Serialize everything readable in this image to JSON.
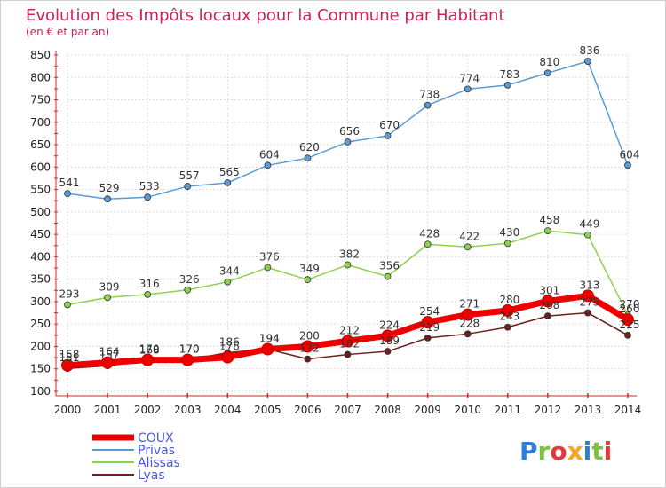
{
  "header": {
    "title": "Evolution des Impôts locaux pour la Commune par Habitant",
    "subtitle": "(en € et par an)"
  },
  "logo": {
    "text": "Proxiti",
    "colors": [
      "#2b7ed8",
      "#7ec142",
      "#e03a3a",
      "#f5a623",
      "#2b7ed8",
      "#7ec142",
      "#e03a3a"
    ]
  },
  "chart_data": {
    "type": "line",
    "x": [
      "2000",
      "2001",
      "2002",
      "2003",
      "2004",
      "2005",
      "2006",
      "2007",
      "2008",
      "2009",
      "2010",
      "2011",
      "2012",
      "2013",
      "2014"
    ],
    "ylim": [
      100,
      850
    ],
    "yticks": [
      100,
      150,
      200,
      250,
      300,
      350,
      400,
      450,
      500,
      550,
      600,
      650,
      700,
      750,
      800,
      850
    ],
    "grid": true,
    "legend_position": "bottom-left",
    "series": [
      {
        "name": "Privas",
        "color": "#5b9bd5",
        "values": [
          541,
          529,
          533,
          557,
          565,
          604,
          620,
          656,
          670,
          738,
          774,
          783,
          810,
          836,
          604
        ]
      },
      {
        "name": "Alissas",
        "color": "#8fd14f",
        "values": [
          293,
          309,
          316,
          326,
          344,
          376,
          349,
          382,
          356,
          428,
          422,
          430,
          458,
          449,
          270
        ]
      },
      {
        "name": "Lyas",
        "color": "#6b1f1f",
        "values": [
          151,
          157,
          168,
          170,
          186,
          194,
          172,
          182,
          189,
          219,
          228,
          243,
          268,
          275,
          225
        ]
      },
      {
        "name": "COUX",
        "color": "#ee0000",
        "values": [
          158,
          164,
          170,
          170,
          176,
          194,
          200,
          212,
          224,
          254,
          271,
          280,
          301,
          313,
          260
        ]
      }
    ]
  }
}
